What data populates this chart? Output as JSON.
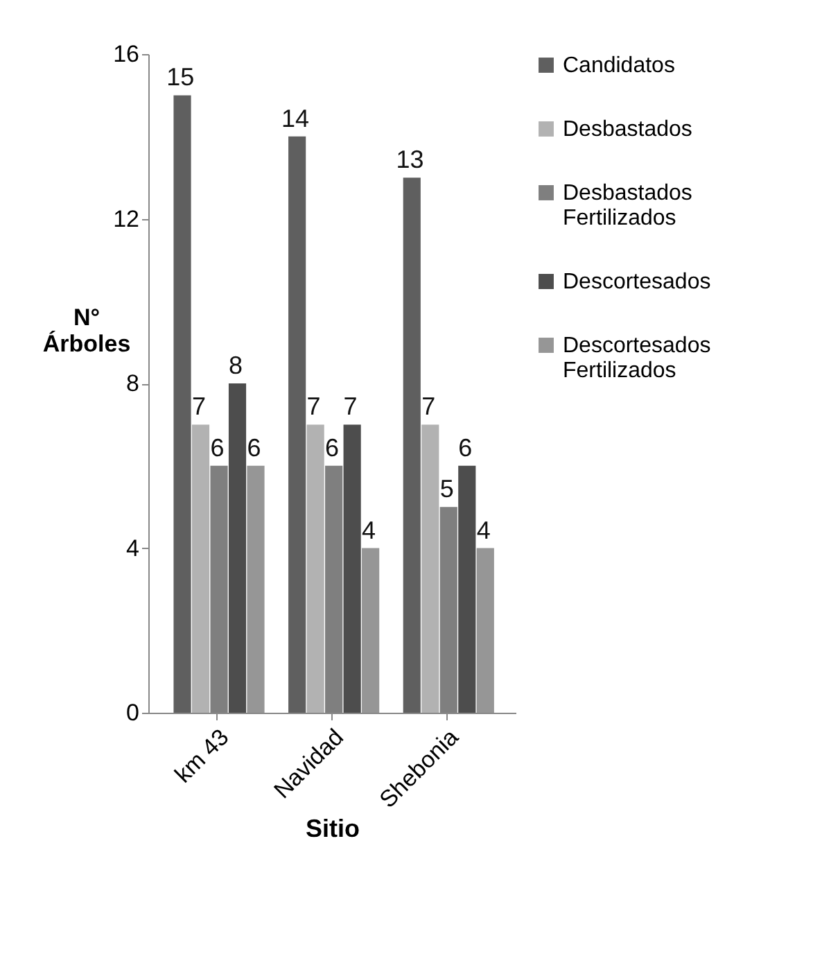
{
  "chart_data": {
    "type": "bar",
    "xlabel": "Sitio",
    "ylabel": "N° Árboles",
    "categories": [
      "km 43",
      "Navidad",
      "Shebonia"
    ],
    "series": [
      {
        "name": "Candidatos",
        "color": "#5f5f5f",
        "values": [
          15,
          14,
          13
        ]
      },
      {
        "name": "Desbastados",
        "color": "#b2b2b2",
        "values": [
          7,
          7,
          7
        ]
      },
      {
        "name": "Desbastados Fertilizados",
        "color": "#7f7f7f",
        "values": [
          6,
          6,
          5
        ]
      },
      {
        "name": "Descortesados",
        "color": "#4d4d4d",
        "values": [
          8,
          7,
          6
        ]
      },
      {
        "name": "Descortesados Fertilizados",
        "color": "#969696",
        "values": [
          6,
          4,
          4
        ]
      }
    ],
    "ylim": [
      0,
      16
    ],
    "yticks": [
      0,
      4,
      8,
      12,
      16
    ],
    "grid": false,
    "legend": "right",
    "data_labels": true
  }
}
